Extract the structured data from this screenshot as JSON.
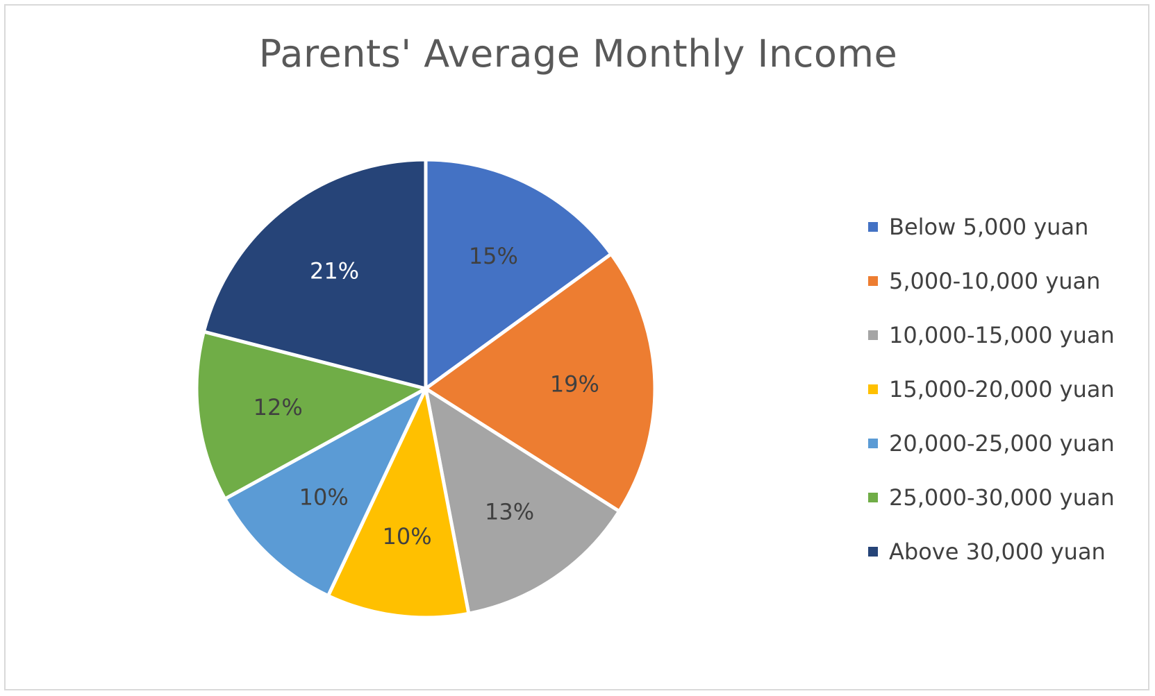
{
  "chart_data": {
    "type": "pie",
    "title": "Parents' Average Monthly Income",
    "categories": [
      "Below 5,000 yuan",
      "5,000-10,000 yuan",
      "10,000-15,000 yuan",
      "15,000-20,000 yuan",
      "20,000-25,000 yuan",
      "25,000-30,000 yuan",
      "Above 30,000 yuan"
    ],
    "values": [
      15,
      19,
      13,
      10,
      10,
      12,
      21
    ],
    "data_labels": [
      "15%",
      "19%",
      "13%",
      "10%",
      "10%",
      "12%",
      "21%"
    ],
    "colors": [
      "#4472C4",
      "#ED7D31",
      "#A5A5A5",
      "#FFC000",
      "#5B9BD5",
      "#70AD47",
      "#264478"
    ],
    "label_colors": [
      "#404040",
      "#404040",
      "#404040",
      "#404040",
      "#404040",
      "#404040",
      "#ffffff"
    ],
    "legend_position": "right",
    "start_angle": "12 o'clock, clockwise"
  }
}
